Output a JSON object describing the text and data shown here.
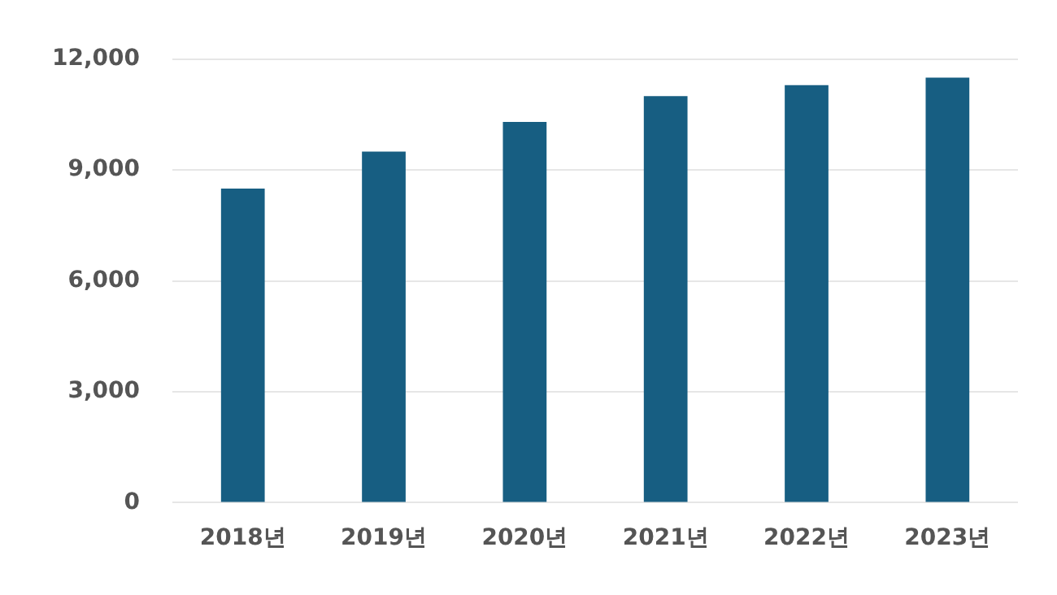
{
  "chart_data": {
    "type": "bar",
    "categories": [
      "2018년",
      "2019년",
      "2020년",
      "2021년",
      "2022년",
      "2023년"
    ],
    "values": [
      8500,
      9500,
      10300,
      11000,
      11300,
      11500
    ],
    "color": "#175e82",
    "ylim": [
      0,
      12000
    ],
    "yticks": [
      0,
      {
        "value": 3000,
        "label": "3,000"
      },
      {
        "value": 6000,
        "label": "6,000"
      },
      {
        "value": 9000,
        "label": "9,000"
      },
      {
        "value": 12000,
        "label": "12,000"
      }
    ],
    "grid": "y"
  }
}
